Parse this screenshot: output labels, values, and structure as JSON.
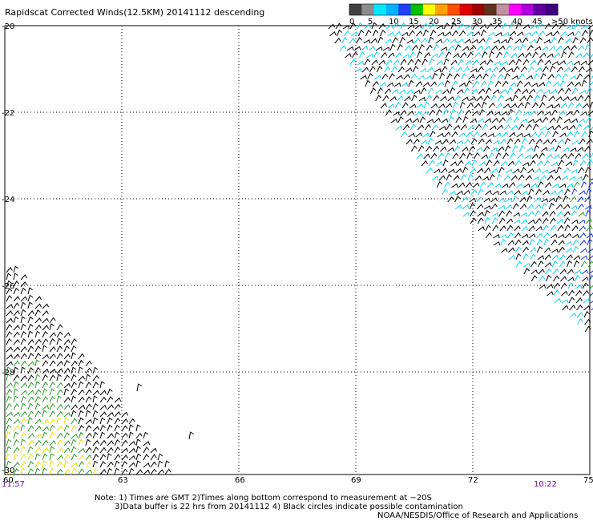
{
  "title": "Rapidscat Corrected Winds(12.5KM) 20141112 descending",
  "colorbar": {
    "labels": [
      "0",
      "5",
      "10",
      "15",
      "20",
      "25",
      "30",
      "35",
      "40",
      "45",
      ">50 knots"
    ],
    "colors": [
      "#404040",
      "#8c8c8c",
      "#00e8ff",
      "#00b4ff",
      "#2040ff",
      "#00c000",
      "#ffff00",
      "#ffa000",
      "#ff5000",
      "#e00000",
      "#a00000",
      "#603020",
      "#c090a0",
      "#ff00ff",
      "#b000e0",
      "#6000a0",
      "#400080"
    ]
  },
  "axes": {
    "lat_labels": [
      "-20",
      "-22",
      "-24",
      "-26",
      "-28",
      "-30"
    ],
    "lon_labels": [
      "60",
      "63",
      "66",
      "69",
      "72",
      "75"
    ]
  },
  "times": {
    "left": "11:57",
    "right": "10:22"
  },
  "notes": {
    "line1": "Note: 1) Times are GMT 2)Times along bottom correspond to measurement at −20S",
    "line2": "3)Data buffer is 22 hrs from 20141112 4) Black circles indicate possible contamination",
    "credit": "NOAA/NESDIS/Office of Research and Applications"
  }
}
